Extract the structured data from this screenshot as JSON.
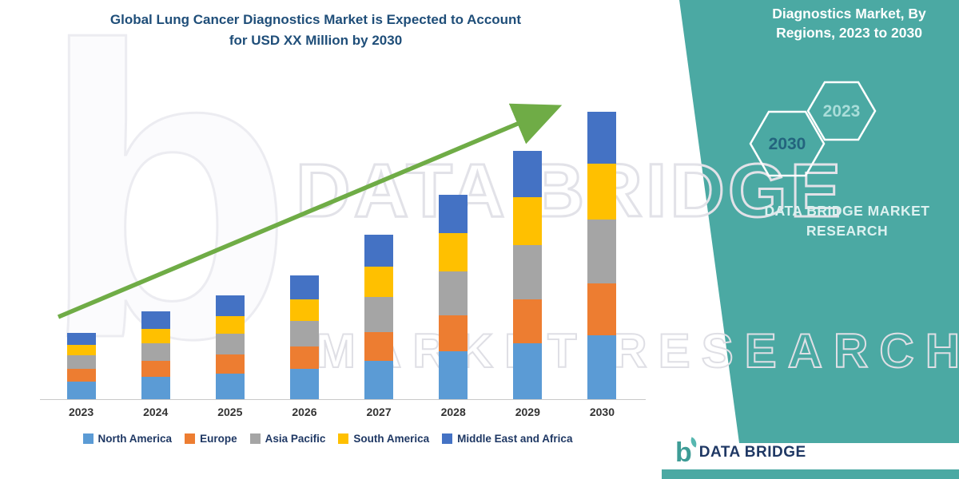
{
  "title": {
    "line1": "Global Lung Cancer Diagnostics Market is Expected to Account",
    "line2": "for USD XX Million by 2030"
  },
  "chart_data": {
    "type": "bar",
    "stacked": true,
    "title": "Global Lung Cancer Diagnostics Market is Expected to Account for USD XX Million by 2030",
    "xlabel": "",
    "ylabel": "",
    "value_axis_visible": false,
    "values_estimated": true,
    "units": "relative height (actual values shown as USD XX Million, no numeric axis in figure)",
    "legend_position": "bottom",
    "trend_arrow": true,
    "trend_arrow_color": "#6FAC46",
    "categories": [
      "2023",
      "2024",
      "2025",
      "2026",
      "2027",
      "2028",
      "2029",
      "2030"
    ],
    "series": [
      {
        "name": "North America",
        "color": "#5B9BD5",
        "values": [
          22,
          28,
          32,
          38,
          48,
          60,
          70,
          80
        ]
      },
      {
        "name": "Europe",
        "color": "#ED7D31",
        "values": [
          16,
          20,
          24,
          28,
          36,
          45,
          55,
          65
        ]
      },
      {
        "name": "Asia Pacific",
        "color": "#A5A5A5",
        "values": [
          17,
          22,
          26,
          32,
          44,
          55,
          68,
          80
        ]
      },
      {
        "name": "South America",
        "color": "#FFC000",
        "values": [
          13,
          18,
          22,
          27,
          38,
          48,
          60,
          70
        ]
      },
      {
        "name": "Middle East and Africa",
        "color": "#4472C4",
        "values": [
          15,
          22,
          26,
          30,
          40,
          48,
          58,
          65
        ]
      }
    ],
    "ylim": [
      0,
      400
    ]
  },
  "side_panel": {
    "heading": "Diagnostics Market, By Regions, 2023 to 2030",
    "hexagons": [
      {
        "label": "2030",
        "text_color": "#23647E"
      },
      {
        "label": "2023",
        "text_color": "#A9DDD9"
      }
    ],
    "brand": "DATA BRIDGE MARKET RESEARCH",
    "bg_color": "#4BA9A3"
  },
  "watermark": {
    "letter": "b",
    "line1": "DATA BRIDGE",
    "line2": "MARKET RESEARCH"
  },
  "footer_logo": {
    "icon": "b",
    "text": "DATA BRIDGE"
  },
  "colors": {
    "accent_teal": "#4BA9A3",
    "title_navy": "#1F4E79",
    "legend_navy": "#1F3864",
    "arrow_green": "#6FAC46"
  }
}
